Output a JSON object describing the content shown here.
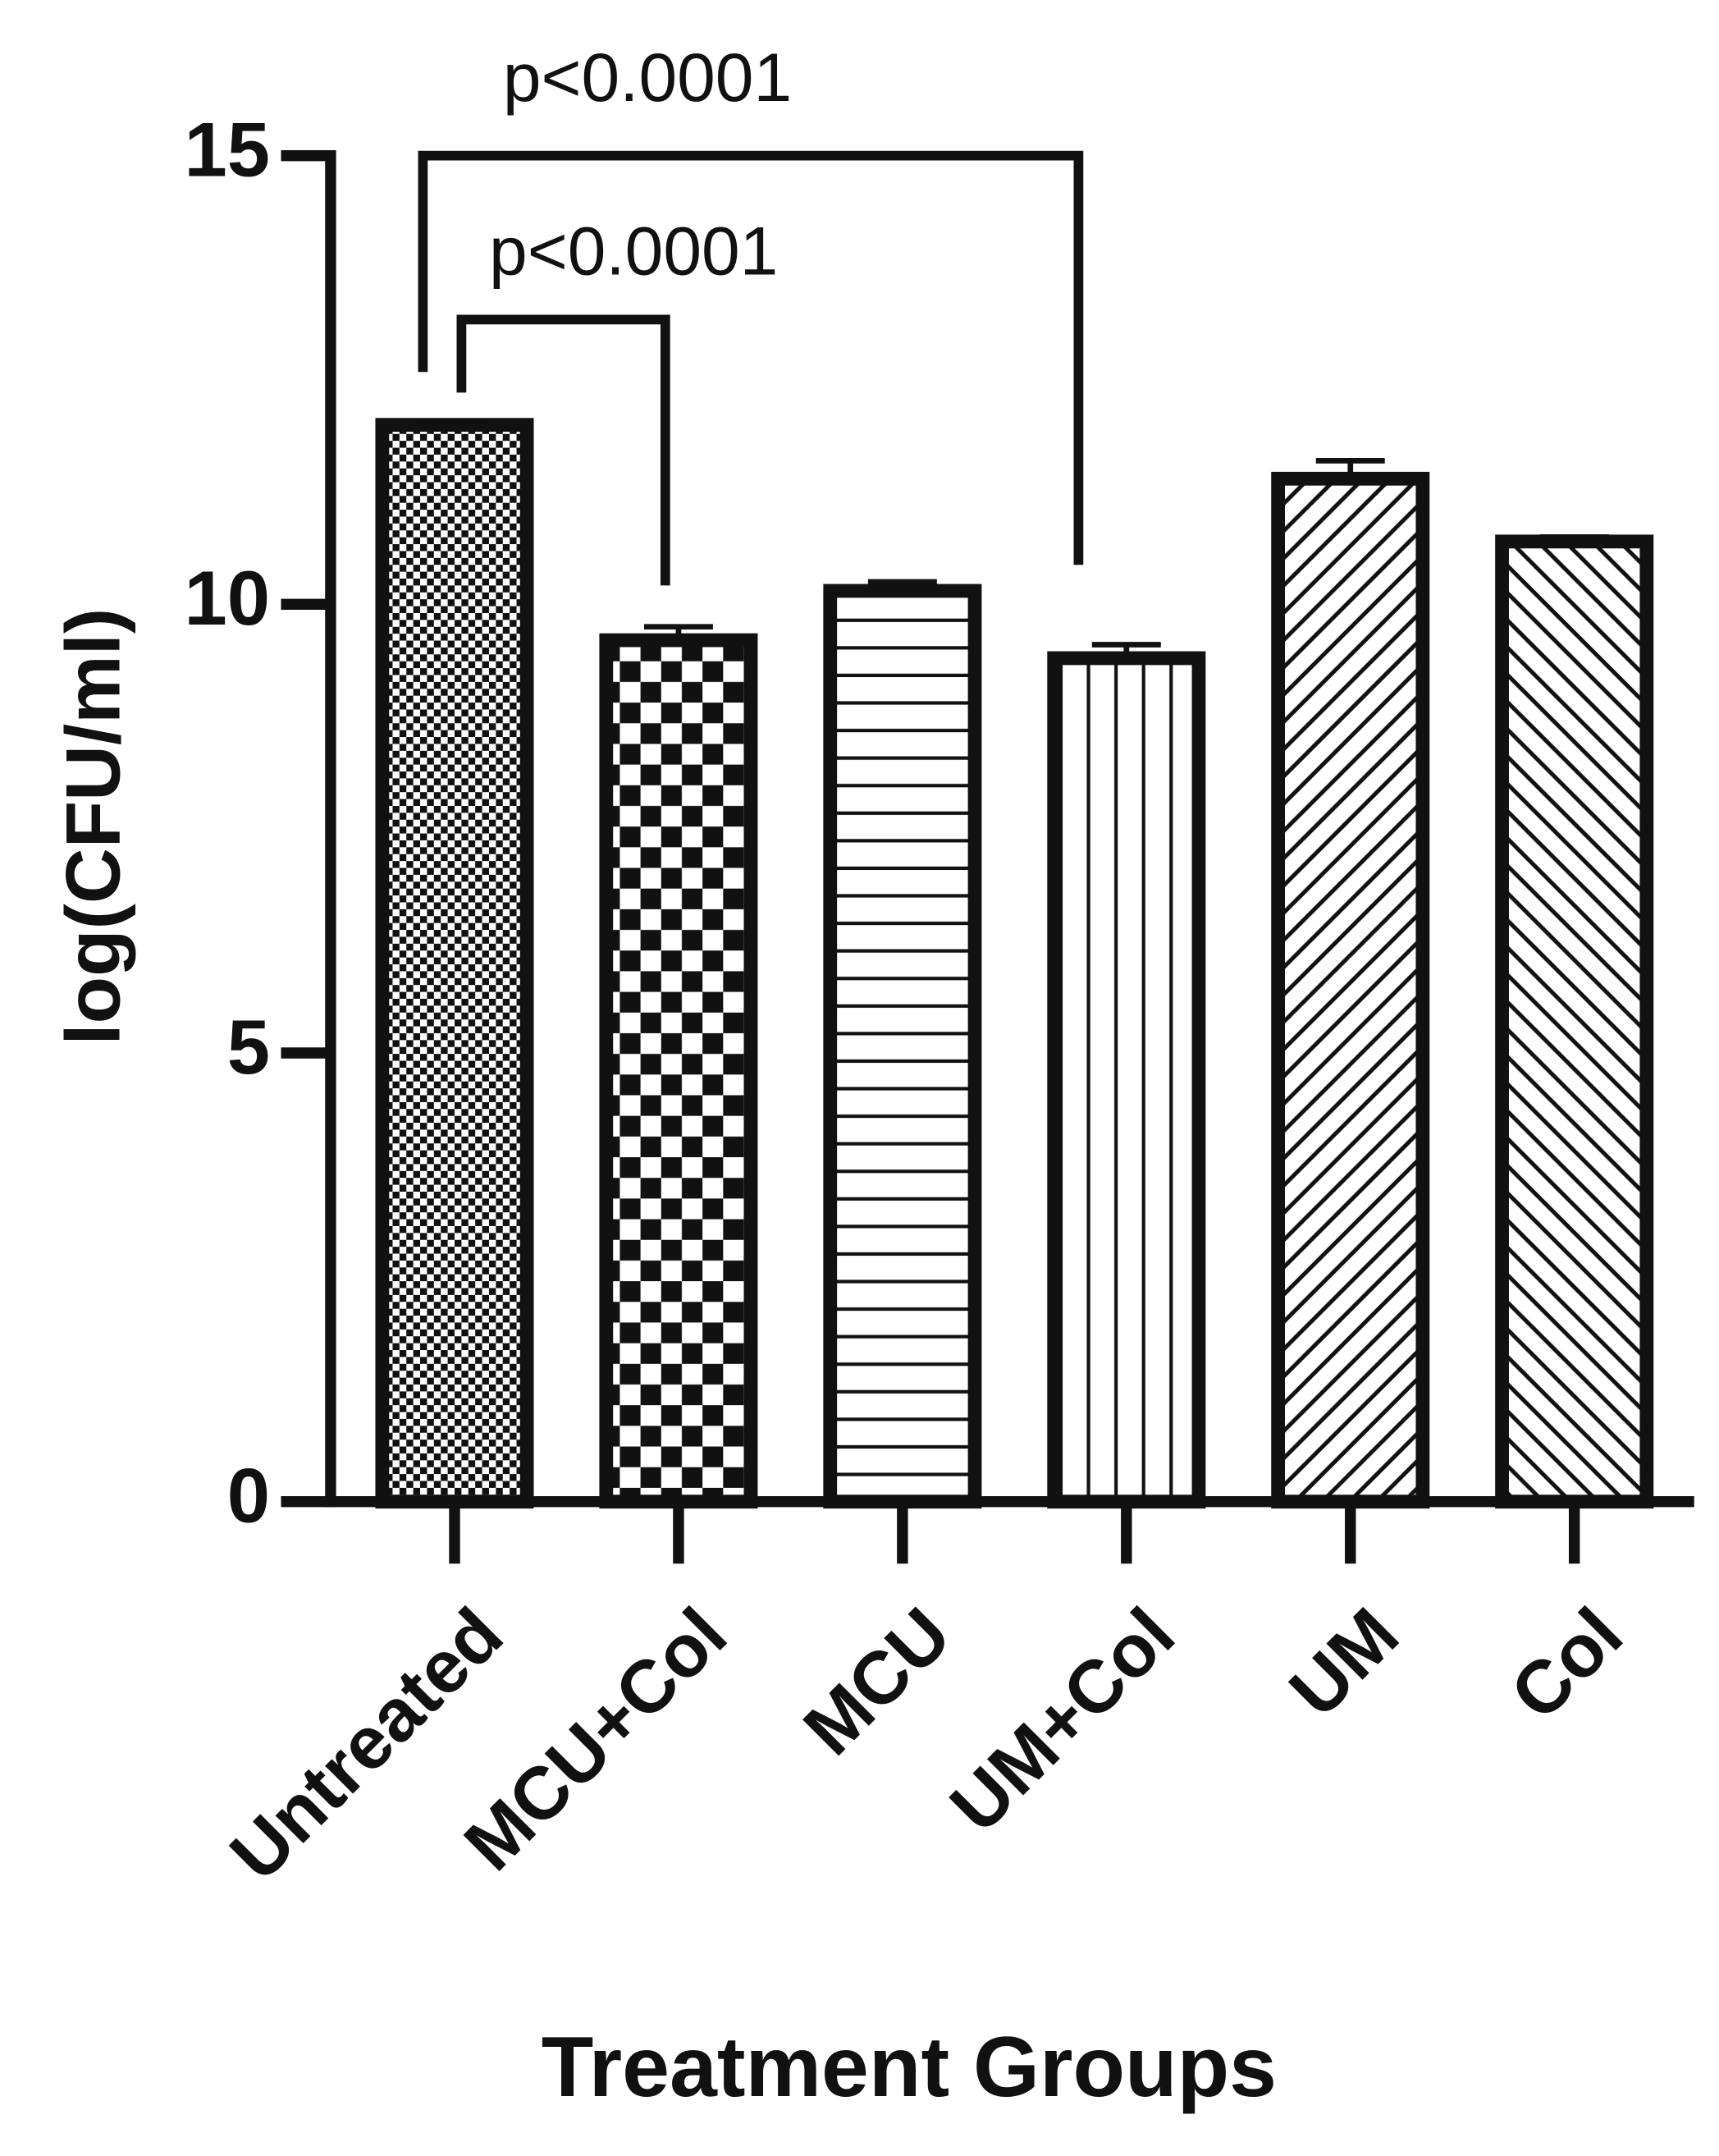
{
  "chart_data": {
    "type": "bar",
    "y_label": "log(CFU/ml)",
    "x_label": "Treatment Groups",
    "categories": [
      "Untreated",
      "MCU+Col",
      "MCU",
      "UM+Col",
      "UM",
      "Col"
    ],
    "values": [
      12.0,
      9.6,
      10.15,
      9.4,
      11.4,
      10.7
    ],
    "errors": [
      0,
      0.15,
      0.1,
      0.15,
      0.2,
      0.05
    ],
    "color": "#111111",
    "ylim": [
      0,
      15
    ],
    "yticks": [
      0,
      5,
      10,
      15
    ],
    "grid": false,
    "annotations": [
      "p<0.0001",
      "p<0.0001"
    ]
  }
}
